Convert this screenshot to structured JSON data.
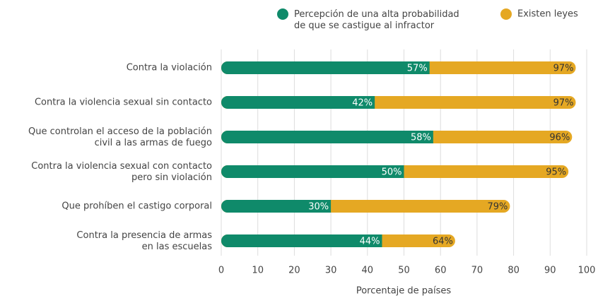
{
  "chart_data": {
    "type": "bar",
    "orientation": "horizontal",
    "overlap": true,
    "categories": [
      "Contra la violación",
      "Contra la violencia sexual sin contacto",
      "Que controlan el acceso de la población\ncivil a las armas de fuego",
      "Contra la violencia sexual con contacto\npero sin violación",
      "Que prohíben el castigo corporal",
      "Contra la presencia de armas\nen las escuelas"
    ],
    "series": [
      {
        "name": "Existen leyes",
        "color": "#e5a823",
        "values": [
          97,
          97,
          96,
          95,
          79,
          64
        ],
        "value_labels": [
          "97%",
          "97%",
          "96%",
          "95%",
          "79%",
          "64%"
        ]
      },
      {
        "name": "Percepción de una alta probabilidad\nde que se castigue al infractor",
        "color": "#0f8a6a",
        "values": [
          57,
          42,
          58,
          50,
          30,
          44
        ],
        "value_labels": [
          "57%",
          "42%",
          "58%",
          "50%",
          "30%",
          "44%"
        ]
      }
    ],
    "xlabel": "Porcentaje de países",
    "xlim": [
      0,
      100
    ],
    "xticks": [
      0,
      10,
      20,
      30,
      40,
      50,
      60,
      70,
      80,
      90,
      100
    ],
    "grid": true
  }
}
